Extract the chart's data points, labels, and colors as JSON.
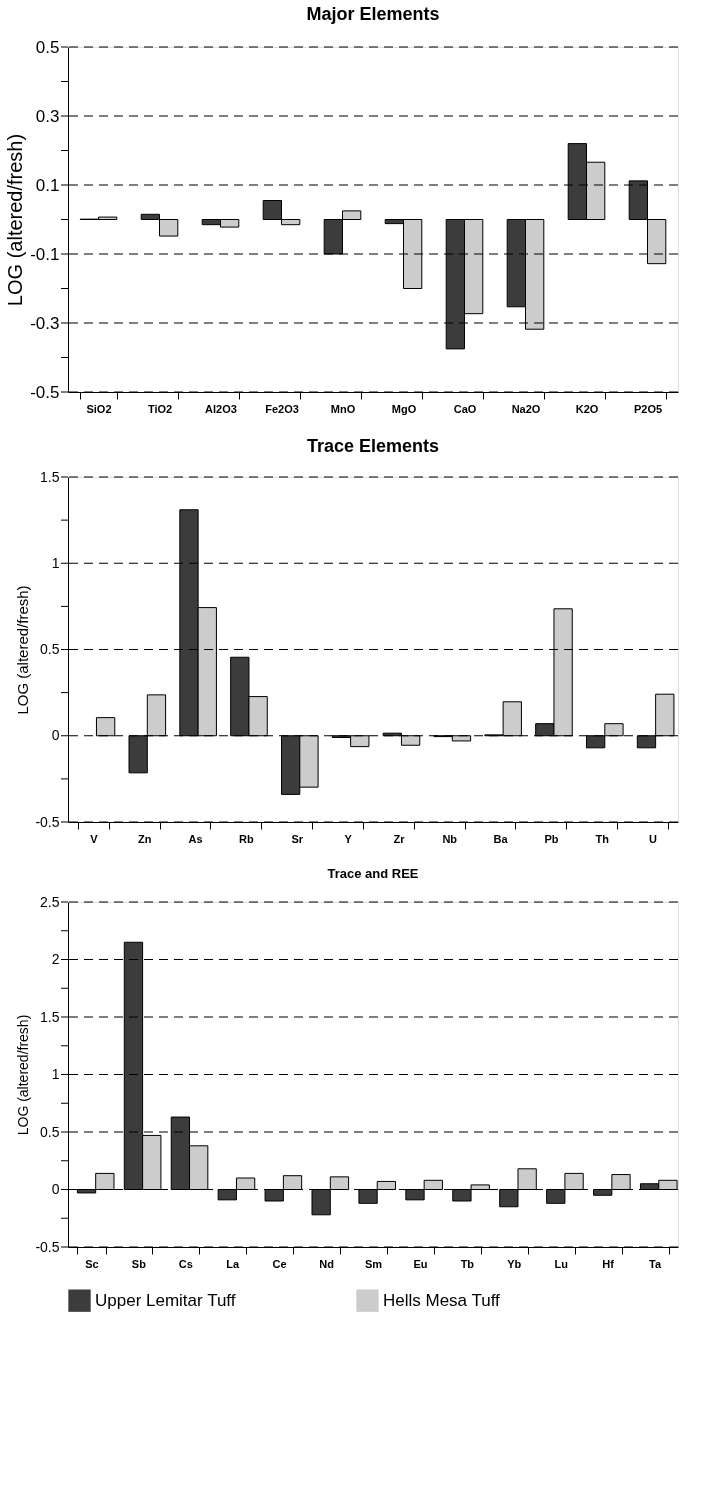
{
  "chart_data": [
    {
      "type": "bar",
      "title": "Major Elements",
      "ylabel": "LOG (altered/fresh)",
      "categories": [
        "SiO2",
        "TiO2",
        "Al2O3",
        "Fe2O3",
        "MnO",
        "MgO",
        "CaO",
        "Na2O",
        "K2O",
        "P2O5"
      ],
      "series": [
        {
          "color": "#3c3c3c",
          "values": [
            0.001,
            0.015,
            -0.015,
            0.055,
            -0.1,
            -0.012,
            -0.375,
            -0.253,
            0.22,
            0.112
          ]
        },
        {
          "color": "#cccccc",
          "values": [
            0.007,
            -0.048,
            -0.022,
            -0.015,
            0.025,
            -0.2,
            -0.273,
            -0.318,
            0.166,
            -0.128
          ]
        }
      ],
      "ylim": [
        -0.5,
        0.5
      ],
      "yticks": [
        0.5,
        {
          "value": 0.4,
          "label": null
        },
        0.3,
        {
          "value": 0.2,
          "label": null
        },
        0.1,
        {
          "value": 0,
          "label": null
        },
        -0.1,
        {
          "value": -0.2,
          "label": null
        },
        -0.3,
        {
          "value": -0.4,
          "label": null
        },
        -0.5
      ],
      "grid": "y",
      "legend": false
    },
    {
      "type": "bar",
      "title": "Trace Elements",
      "ylabel": "LOG (altered/fresh)",
      "categories": [
        "V",
        "Zn",
        "As",
        "Rb",
        "Sr",
        "Y",
        "Zr",
        "Nb",
        "Ba",
        "Pb",
        "Th",
        "U"
      ],
      "series": [
        {
          "color": "#3c3c3c",
          "values": [
            null,
            -0.215,
            1.31,
            0.455,
            -0.34,
            -0.01,
            0.015,
            -0.005,
            0.005,
            0.07,
            -0.07,
            -0.07
          ]
        },
        {
          "color": "#cccccc",
          "values": [
            0.105,
            0.237,
            0.743,
            0.227,
            -0.298,
            -0.063,
            -0.055,
            -0.03,
            0.197,
            0.736,
            0.07,
            0.241
          ]
        }
      ],
      "ylim": [
        -0.5,
        1.5
      ],
      "yticks": [
        1.5,
        {
          "value": 1.25,
          "label": null
        },
        1,
        {
          "value": 0.75,
          "label": null
        },
        0.5,
        {
          "value": 0.25,
          "label": null
        },
        0,
        {
          "value": -0.25,
          "label": null
        },
        -0.5
      ],
      "grid": "y",
      "legend": false
    },
    {
      "type": "bar",
      "title": "Trace and REE",
      "ylabel": "LOG (altered/fresh)",
      "categories": [
        "Sc",
        "Sb",
        "Cs",
        "La",
        "Ce",
        "Nd",
        "Sm",
        "Eu",
        "Tb",
        "Yb",
        "Lu",
        "Hf",
        "Ta"
      ],
      "series": [
        {
          "name": "Upper Lemitar Tuff",
          "color": "#3c3c3c",
          "values": [
            -0.03,
            2.15,
            0.63,
            -0.09,
            -0.1,
            -0.22,
            -0.12,
            -0.09,
            -0.1,
            -0.15,
            -0.12,
            -0.05,
            0.05
          ]
        },
        {
          "name": "Hells Mesa Tuff",
          "color": "#cccccc",
          "values": [
            0.14,
            0.47,
            0.38,
            0.1,
            0.12,
            0.11,
            0.07,
            0.08,
            0.04,
            0.18,
            0.14,
            0.13,
            0.08
          ]
        }
      ],
      "ylim": [
        -0.5,
        2.5
      ],
      "yticks": [
        2.5,
        {
          "value": 2.25,
          "label": null
        },
        2,
        {
          "value": 1.75,
          "label": null
        },
        1.5,
        {
          "value": 1.25,
          "label": null
        },
        1,
        {
          "value": 0.75,
          "label": null
        },
        0.5,
        {
          "value": 0.25,
          "label": null
        },
        0,
        {
          "value": -0.25,
          "label": null
        },
        -0.5
      ],
      "grid": "y",
      "legend": "bottom"
    }
  ]
}
